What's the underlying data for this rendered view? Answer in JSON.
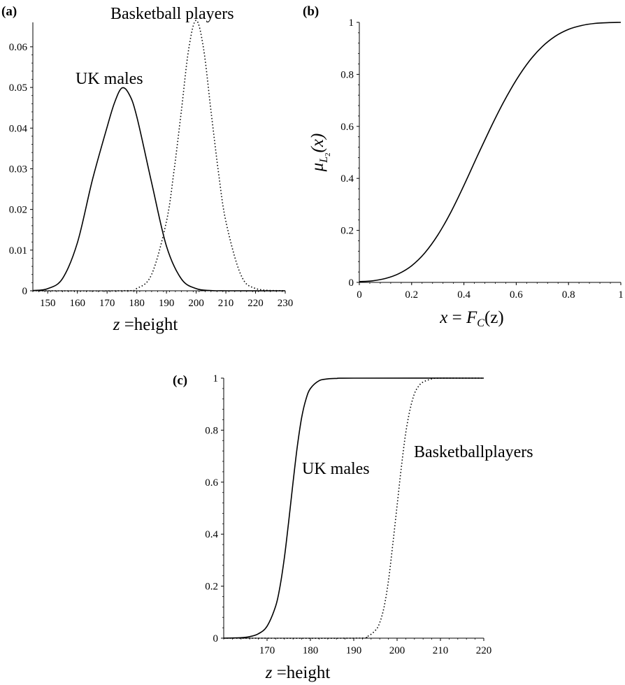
{
  "chart_data": [
    {
      "panel_label": "(a)",
      "type": "line",
      "xlim": [
        145,
        230
      ],
      "ylim": [
        0,
        0.066
      ],
      "xticks": [
        150,
        160,
        170,
        180,
        190,
        200,
        210,
        220,
        230
      ],
      "yticks": [
        0,
        0.01,
        0.02,
        0.03,
        0.04,
        0.05,
        0.06
      ],
      "xtick_labels": [
        "150",
        "160",
        "170",
        "180",
        "190",
        "200",
        "210",
        "220",
        "230"
      ],
      "ytick_labels": [
        "0",
        "0.01",
        "0.02",
        "0.03",
        "0.04",
        "0.05",
        "0.06"
      ],
      "xlabel_var": "z",
      "xlabel_rest": " =height",
      "ylabel": "",
      "series": [
        {
          "name": "UK males",
          "style": "solid",
          "x": [
            145,
            150,
            155,
            160,
            165,
            170,
            172.5,
            175,
            177.5,
            180,
            185,
            190,
            195,
            200,
            205,
            210,
            230
          ],
          "y": [
            6e-05,
            0.00052,
            0.00303,
            0.01181,
            0.02709,
            0.04026,
            0.04624,
            0.04987,
            0.04823,
            0.04285,
            0.02658,
            0.01098,
            0.00293,
            0.00053,
            6e-05,
            0.0,
            0.0
          ]
        },
        {
          "name": "Basketball players",
          "style": "dotted",
          "x": [
            145,
            175,
            180,
            185,
            190,
            192.5,
            195,
            197.5,
            200,
            202.5,
            205,
            207.5,
            210,
            215,
            220,
            230
          ],
          "y": [
            0.0,
            0.0,
            0.00057,
            0.00403,
            0.01706,
            0.02924,
            0.04418,
            0.05951,
            0.0665,
            0.05951,
            0.04418,
            0.02924,
            0.01706,
            0.00403,
            0.00057,
            0.0
          ]
        }
      ],
      "annotations": [
        "UK males",
        "Basketball players"
      ]
    },
    {
      "panel_label": "(b)",
      "type": "line",
      "xlim": [
        0,
        1
      ],
      "ylim": [
        0,
        1
      ],
      "xticks": [
        0,
        0.2,
        0.4,
        0.6,
        0.8,
        1
      ],
      "yticks": [
        0,
        0.2,
        0.4,
        0.6,
        0.8,
        1
      ],
      "xtick_labels": [
        "0",
        "0.2",
        "0.4",
        "0.6",
        "0.8",
        "1"
      ],
      "ytick_labels": [
        "0",
        "0.2",
        "0.4",
        "0.6",
        "0.8",
        "1"
      ],
      "xlabel_lhs": "x",
      "xlabel_eq": " = ",
      "xlabel_f": "F",
      "xlabel_sub": "C",
      "xlabel_arg": "(z)",
      "ylabel_mu": "μ",
      "ylabel_sub": "L",
      "ylabel_subsub": "2",
      "ylabel_arg": "(x)",
      "series": [
        {
          "name": "",
          "style": "solid",
          "x": [
            0,
            0.05,
            0.1,
            0.15,
            0.2,
            0.25,
            0.3,
            0.35,
            0.4,
            0.45,
            0.5,
            0.55,
            0.6,
            0.65,
            0.7,
            0.75,
            0.8,
            0.85,
            0.9,
            0.95,
            1
          ],
          "y": [
            0.003,
            0.006,
            0.015,
            0.033,
            0.064,
            0.113,
            0.182,
            0.27,
            0.373,
            0.483,
            0.59,
            0.69,
            0.778,
            0.851,
            0.907,
            0.947,
            0.973,
            0.988,
            0.996,
            0.999,
            1.0
          ]
        }
      ]
    },
    {
      "panel_label": "(c)",
      "type": "line",
      "xlim": [
        160,
        220
      ],
      "ylim": [
        0,
        1
      ],
      "xticks": [
        170,
        180,
        190,
        200,
        210,
        220
      ],
      "yticks": [
        0,
        0.2,
        0.4,
        0.6,
        0.8,
        1
      ],
      "xtick_labels": [
        "170",
        "180",
        "190",
        "200",
        "210",
        "220"
      ],
      "ytick_labels": [
        "0",
        "0.2",
        "0.4",
        "0.6",
        "0.8",
        "1"
      ],
      "xlabel_var": "z",
      "xlabel_rest": " =height",
      "ylabel": "",
      "series": [
        {
          "name": "UK males",
          "style": "solid",
          "x": [
            160,
            164,
            166,
            168,
            170,
            172,
            173,
            174,
            175,
            176,
            177,
            178,
            179,
            180,
            182,
            184,
            186,
            190,
            220
          ],
          "y": [
            0.0,
            0.002,
            0.006,
            0.017,
            0.046,
            0.124,
            0.2,
            0.31,
            0.45,
            0.6,
            0.74,
            0.85,
            0.92,
            0.96,
            0.99,
            0.997,
            0.999,
            1.0,
            1.0
          ]
        },
        {
          "name": "Basketball players",
          "style": "dotted",
          "x": [
            160,
            190,
            193,
            195,
            196,
            197,
            198,
            199,
            200,
            201,
            202,
            203,
            204,
            205,
            206,
            208,
            210,
            220
          ],
          "y": [
            0.0,
            0.0,
            0.006,
            0.03,
            0.06,
            0.12,
            0.22,
            0.36,
            0.51,
            0.66,
            0.79,
            0.88,
            0.94,
            0.97,
            0.985,
            0.997,
            1.0,
            1.0
          ]
        }
      ],
      "annotations": [
        "UK males",
        "Basketballplayers"
      ]
    }
  ]
}
